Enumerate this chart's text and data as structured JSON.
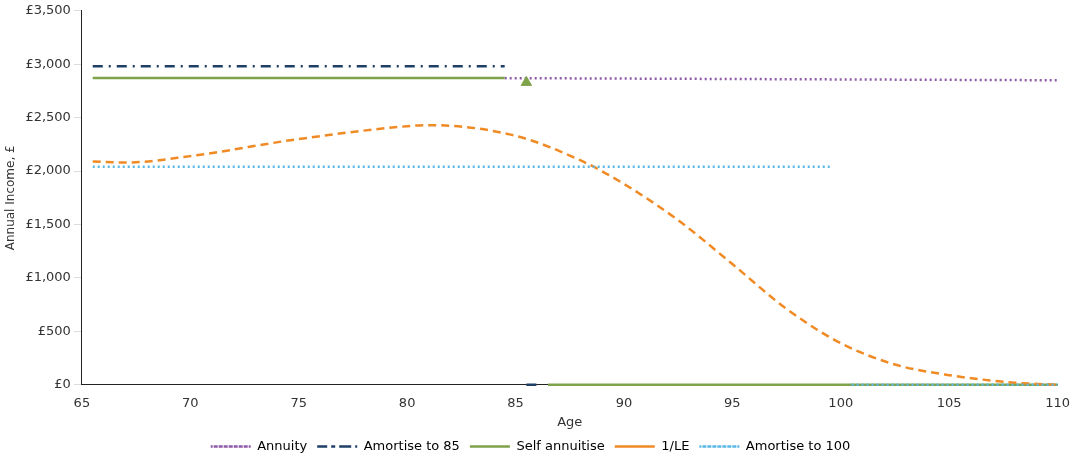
{
  "chart_data": {
    "type": "line",
    "xlabel": "Age",
    "ylabel": "Annual Income, £",
    "xlim": [
      65,
      110
    ],
    "xticks": [
      65,
      70,
      75,
      80,
      85,
      90,
      95,
      100,
      105,
      110
    ],
    "ylim": [
      0,
      3500
    ],
    "yticks": [
      {
        "value": 0,
        "label": "£0"
      },
      {
        "value": 500,
        "label": "£500"
      },
      {
        "value": 1000,
        "label": "£1,000"
      },
      {
        "value": 1500,
        "label": "£1,500"
      },
      {
        "value": 2000,
        "label": "£2,000"
      },
      {
        "value": 2500,
        "label": "£2,500"
      },
      {
        "value": 3000,
        "label": "£3,000"
      },
      {
        "value": 3500,
        "label": "£3,500"
      }
    ],
    "grid": false,
    "legend": "bottom",
    "marker": "none",
    "series": [
      {
        "name": "Annuity",
        "color": "#8e5ba8",
        "line_style": "dotted",
        "x": [
          84.5,
          110
        ],
        "values": [
          2870,
          2850
        ]
      },
      {
        "name": "Amortise to 85",
        "color": "#1f3f66",
        "line_style": "dashdot",
        "x": [
          65.5,
          84.5,
          85,
          85.5,
          86
        ],
        "values": [
          2980,
          2980,
          null,
          0,
          0
        ]
      },
      {
        "name": "Self annuitise",
        "color": "#7fa34a",
        "line_style": "solid",
        "x": [
          65.5,
          84.5,
          85,
          86.5,
          110
        ],
        "values": [
          2870,
          2870,
          null,
          0,
          0
        ]
      },
      {
        "type": "scatter",
        "color": "#7fa34a",
        "marker": "triangle",
        "x": [
          85.5
        ],
        "values": [
          2830
        ]
      },
      {
        "name": "1/LE",
        "color": "#f08a24",
        "line_style": "dashed",
        "x": [
          65.5,
          67,
          70,
          75,
          80,
          81,
          85,
          88,
          90,
          92.5,
          95,
          97.5,
          100,
          102.5,
          105,
          108,
          110
        ],
        "values": [
          2090,
          2080,
          2140,
          2300,
          2420,
          2430,
          2330,
          2100,
          1880,
          1540,
          1130,
          710,
          390,
          190,
          90,
          20,
          0
        ]
      },
      {
        "name": "Amortise to 100",
        "color": "#5bb8e6",
        "line_style": "dotted",
        "x": [
          65.5,
          99.5,
          100,
          100.5,
          110
        ],
        "values": [
          2040,
          2040,
          null,
          0,
          0
        ]
      }
    ]
  }
}
